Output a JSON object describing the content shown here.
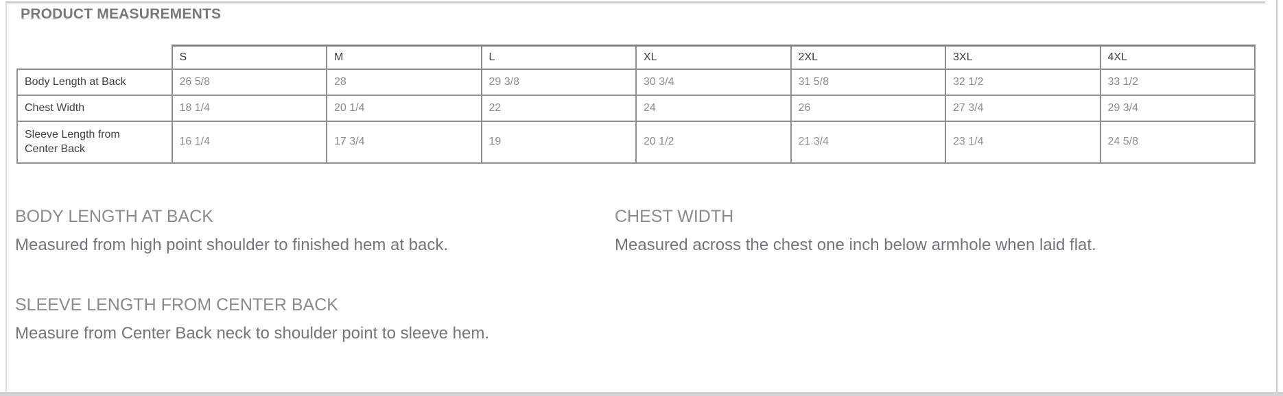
{
  "page": {
    "title": "PRODUCT MEASUREMENTS"
  },
  "table": {
    "columns": [
      "S",
      "M",
      "L",
      "XL",
      "2XL",
      "3XL",
      "4XL"
    ],
    "rows": [
      {
        "label": "Body Length at Back",
        "values": [
          "26 5/8",
          "28",
          "29 3/8",
          "30 3/4",
          "31 5/8",
          "32 1/2",
          "33 1/2"
        ]
      },
      {
        "label": "Chest Width",
        "values": [
          "18 1/4",
          "20 1/4",
          "22",
          "24",
          "26",
          "27 3/4",
          "29 3/4"
        ]
      },
      {
        "label": "Sleeve Length from Center Back",
        "values": [
          "16 1/4",
          "17 3/4",
          "19",
          "20 1/2",
          "21 3/4",
          "23 1/4",
          "24 5/8"
        ]
      }
    ]
  },
  "sections": [
    {
      "heading": "BODY LENGTH AT BACK",
      "description": "Measured from high point shoulder to finished hem at back."
    },
    {
      "heading": "CHEST WIDTH",
      "description": "Measured across the chest one inch below armhole when laid flat."
    },
    {
      "heading": "SLEEVE LENGTH FROM CENTER BACK",
      "description": "Measure from Center Back neck to shoulder point to sleeve hem."
    }
  ],
  "colors": {
    "title_text": "#77787a",
    "table_border": "#8f9092",
    "table_label_text": "#3e3f41",
    "table_value_text": "#8c8d8f",
    "section_heading_text": "#8a8b8d",
    "section_description_text": "#737578",
    "divider": "#cccdce",
    "bottom_strip": "#d2d3d4"
  }
}
